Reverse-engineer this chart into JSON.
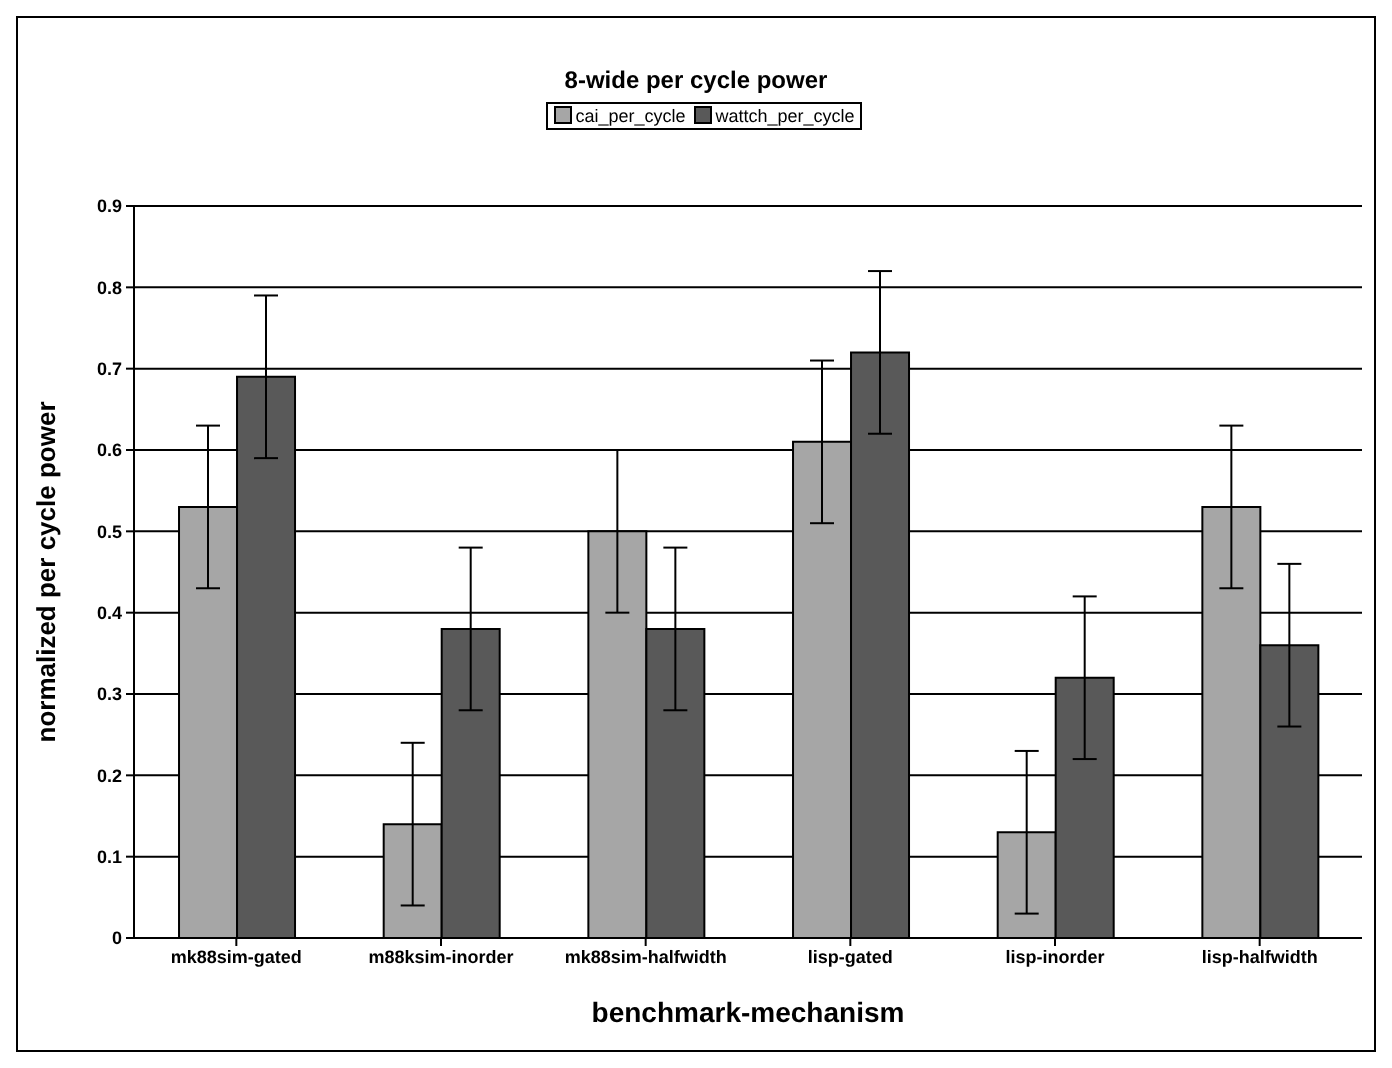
{
  "chart_data": {
    "type": "bar",
    "title": "8-wide per cycle power",
    "xlabel": "benchmark-mechanism",
    "ylabel": "normalized per cycle power",
    "categories": [
      "mk88sim-gated",
      "m88ksim-inorder",
      "mk88sim-halfwidth",
      "lisp-gated",
      "lisp-inorder",
      "lisp-halfwidth"
    ],
    "series": [
      {
        "name": "cai_per_cycle",
        "color": "#a6a6a6",
        "values": [
          0.53,
          0.14,
          0.5,
          0.61,
          0.13,
          0.53
        ],
        "errors": [
          0.1,
          0.1,
          0.1,
          0.1,
          0.1,
          0.1
        ]
      },
      {
        "name": "wattch_per_cycle",
        "color": "#595959",
        "values": [
          0.69,
          0.38,
          0.38,
          0.72,
          0.32,
          0.36
        ],
        "errors": [
          0.1,
          0.1,
          0.1,
          0.1,
          0.1,
          0.1
        ]
      }
    ],
    "ylim": [
      0,
      0.9
    ],
    "yticks": [
      0,
      0.1,
      0.2,
      0.3,
      0.4,
      0.5,
      0.6,
      0.7,
      0.8,
      0.9
    ],
    "grid": "y",
    "legend": "top"
  }
}
